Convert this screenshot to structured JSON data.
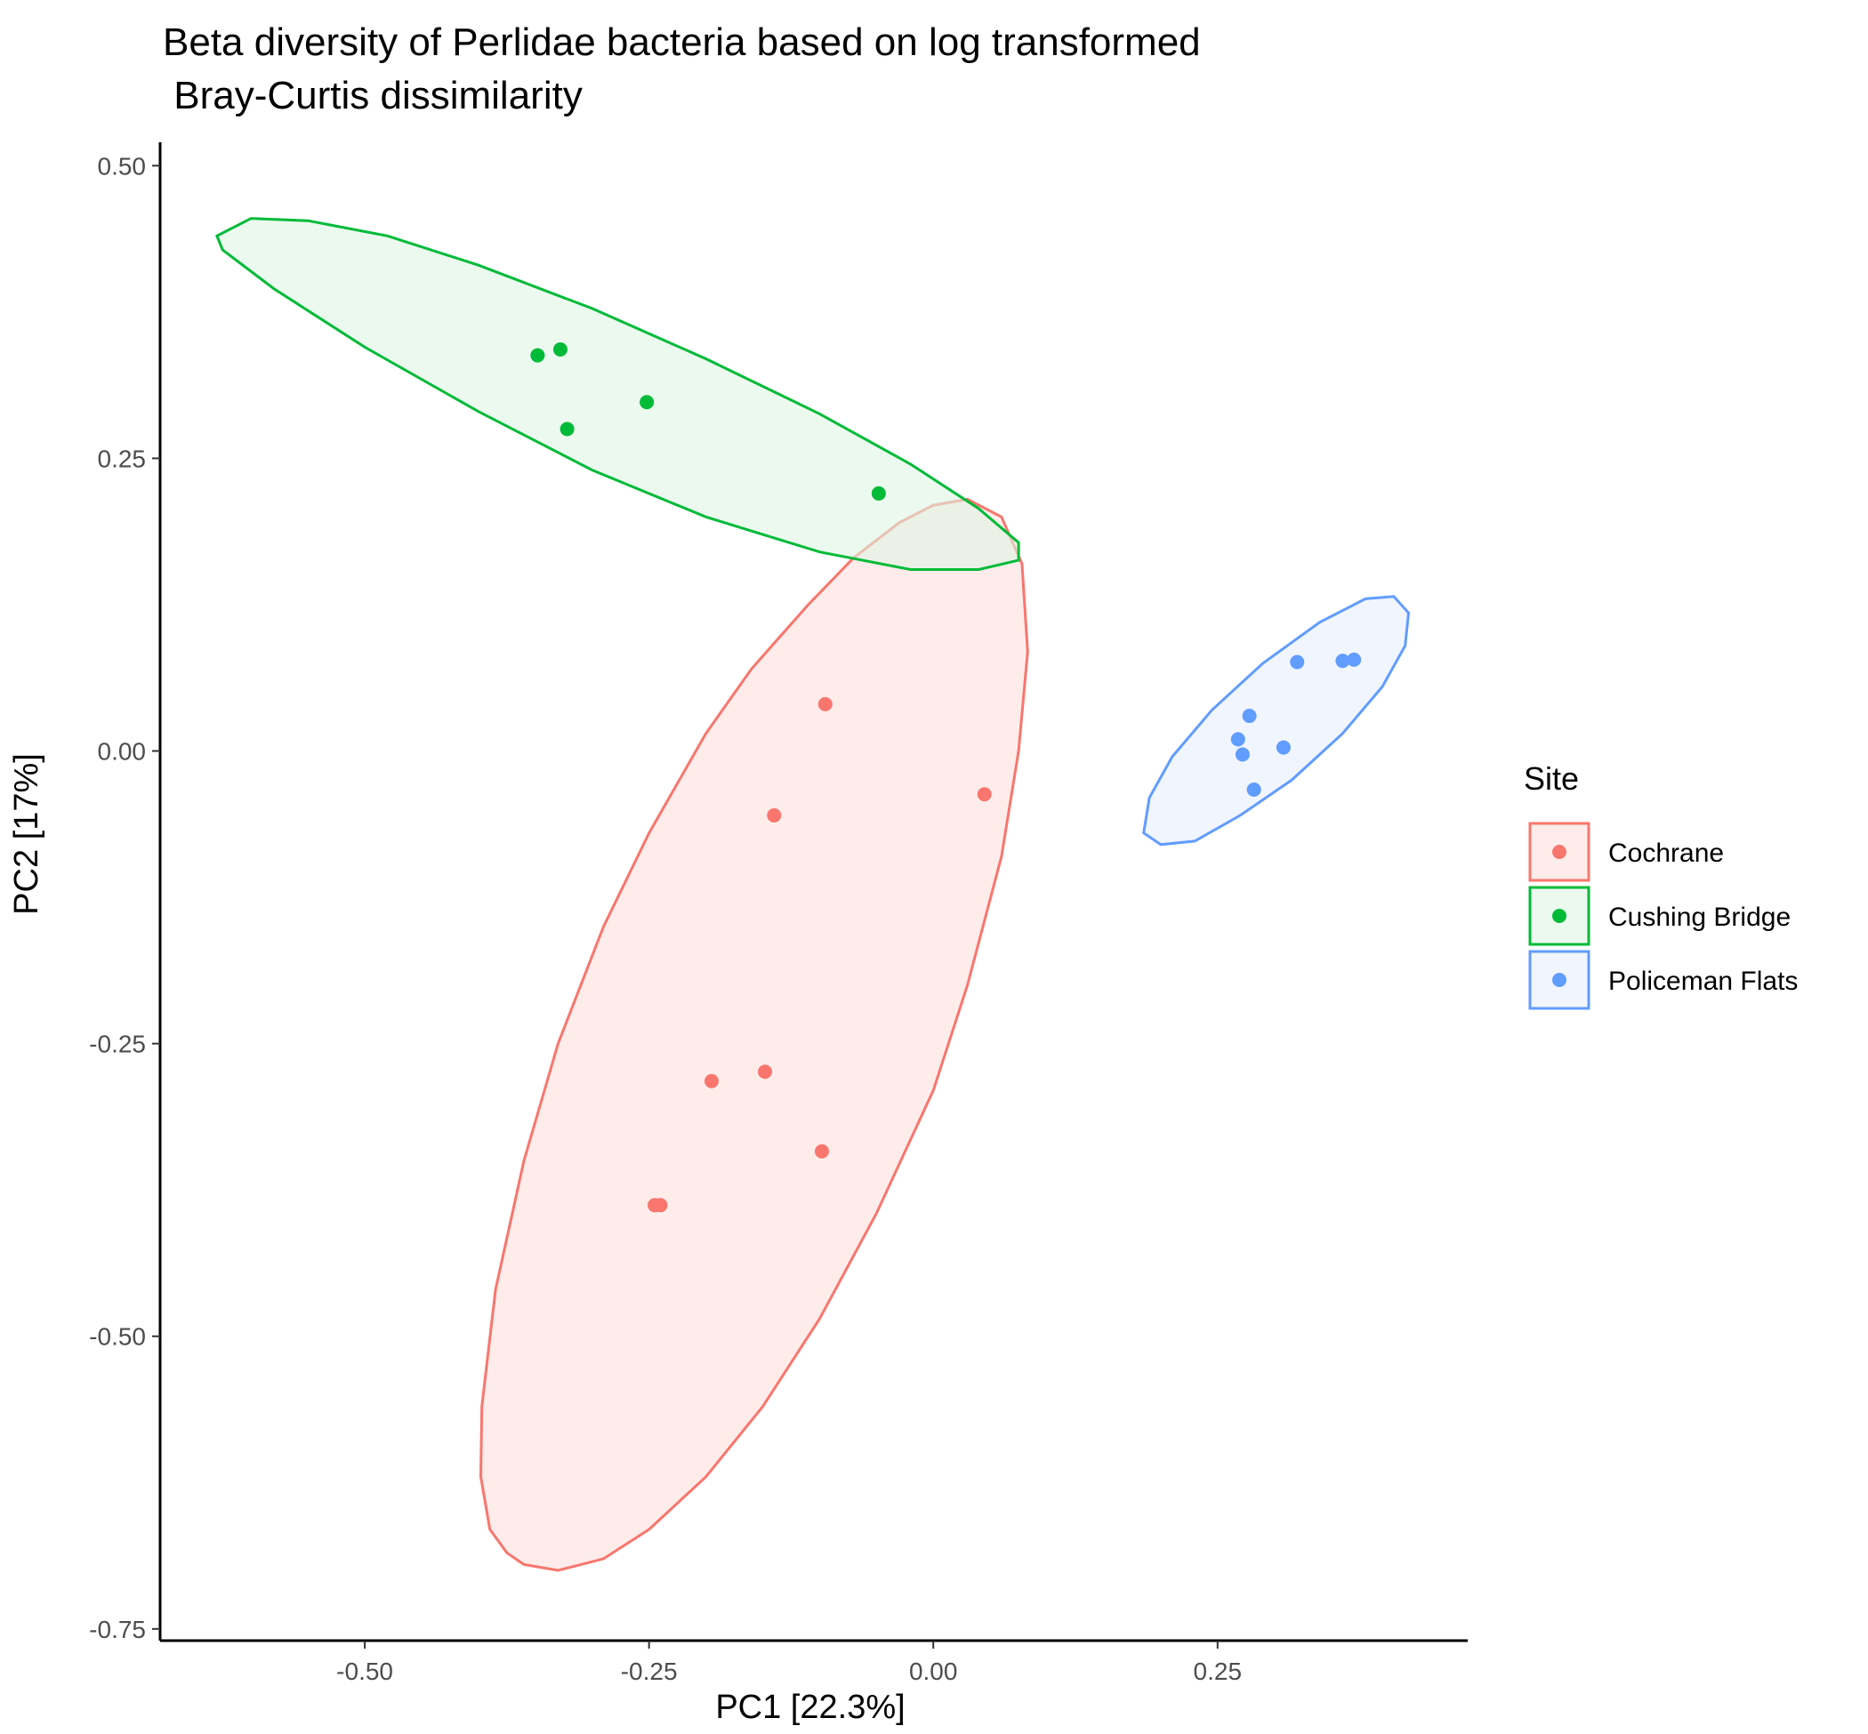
{
  "chart_data": {
    "type": "scatter",
    "title": "Beta diversity of Perlidae bacteria based on log transformed",
    "subtitle": " Bray-Curtis dissimilarity",
    "xlabel": "PC1 [22.3%]",
    "ylabel": "PC2 [17%]",
    "xlim": [
      -0.68,
      0.47
    ],
    "ylim": [
      -0.76,
      0.52
    ],
    "x_ticks": [
      -0.5,
      -0.25,
      0.0,
      0.25
    ],
    "x_tick_labels": [
      "-0.50",
      "-0.25",
      "0.00",
      "0.25"
    ],
    "y_ticks": [
      -0.75,
      -0.5,
      -0.25,
      0.0,
      0.25,
      0.5
    ],
    "y_tick_labels": [
      "-0.75",
      "-0.50",
      "-0.25",
      "0.00",
      "0.25",
      "0.50"
    ],
    "grid": false,
    "legend_title": "Site",
    "legend_position": "right",
    "series": [
      {
        "name": "Cochrane",
        "color": "#F8766D",
        "fill": "#FDE0DE",
        "points": [
          {
            "x": -0.095,
            "y": 0.04
          },
          {
            "x": -0.14,
            "y": -0.055
          },
          {
            "x": 0.045,
            "y": -0.037
          },
          {
            "x": -0.195,
            "y": -0.282
          },
          {
            "x": -0.148,
            "y": -0.274
          },
          {
            "x": -0.098,
            "y": -0.342
          },
          {
            "x": -0.245,
            "y": -0.388
          },
          {
            "x": -0.24,
            "y": -0.388
          }
        ],
        "ellipse": [
          {
            "x": -0.36,
            "y": -0.695
          },
          {
            "x": -0.33,
            "y": -0.7
          },
          {
            "x": -0.29,
            "y": -0.69
          },
          {
            "x": -0.25,
            "y": -0.665
          },
          {
            "x": -0.2,
            "y": -0.62
          },
          {
            "x": -0.15,
            "y": -0.56
          },
          {
            "x": -0.1,
            "y": -0.485
          },
          {
            "x": -0.05,
            "y": -0.395
          },
          {
            "x": 0.0,
            "y": -0.29
          },
          {
            "x": 0.03,
            "y": -0.2
          },
          {
            "x": 0.06,
            "y": -0.09
          },
          {
            "x": 0.075,
            "y": 0.0
          },
          {
            "x": 0.083,
            "y": 0.085
          },
          {
            "x": 0.078,
            "y": 0.16
          },
          {
            "x": 0.06,
            "y": 0.2
          },
          {
            "x": 0.03,
            "y": 0.215
          },
          {
            "x": 0.0,
            "y": 0.21
          },
          {
            "x": -0.03,
            "y": 0.195
          },
          {
            "x": -0.07,
            "y": 0.165
          },
          {
            "x": -0.11,
            "y": 0.125
          },
          {
            "x": -0.16,
            "y": 0.07
          },
          {
            "x": -0.2,
            "y": 0.015
          },
          {
            "x": -0.25,
            "y": -0.07
          },
          {
            "x": -0.29,
            "y": -0.15
          },
          {
            "x": -0.33,
            "y": -0.25
          },
          {
            "x": -0.36,
            "y": -0.35
          },
          {
            "x": -0.385,
            "y": -0.46
          },
          {
            "x": -0.397,
            "y": -0.56
          },
          {
            "x": -0.398,
            "y": -0.62
          },
          {
            "x": -0.39,
            "y": -0.665
          },
          {
            "x": -0.375,
            "y": -0.685
          }
        ]
      },
      {
        "name": "Cushing Bridge",
        "color": "#00BA38",
        "fill": "#DDF5E3",
        "points": [
          {
            "x": -0.348,
            "y": 0.338
          },
          {
            "x": -0.328,
            "y": 0.343
          },
          {
            "x": -0.322,
            "y": 0.275
          },
          {
            "x": -0.252,
            "y": 0.298
          },
          {
            "x": -0.048,
            "y": 0.22
          }
        ],
        "ellipse": [
          {
            "x": -0.63,
            "y": 0.44
          },
          {
            "x": -0.6,
            "y": 0.455
          },
          {
            "x": -0.55,
            "y": 0.453
          },
          {
            "x": -0.48,
            "y": 0.44
          },
          {
            "x": -0.4,
            "y": 0.415
          },
          {
            "x": -0.3,
            "y": 0.378
          },
          {
            "x": -0.2,
            "y": 0.335
          },
          {
            "x": -0.1,
            "y": 0.288
          },
          {
            "x": -0.02,
            "y": 0.245
          },
          {
            "x": 0.04,
            "y": 0.207
          },
          {
            "x": 0.075,
            "y": 0.178
          },
          {
            "x": 0.075,
            "y": 0.163
          },
          {
            "x": 0.04,
            "y": 0.155
          },
          {
            "x": -0.02,
            "y": 0.155
          },
          {
            "x": -0.1,
            "y": 0.17
          },
          {
            "x": -0.2,
            "y": 0.2
          },
          {
            "x": -0.3,
            "y": 0.24
          },
          {
            "x": -0.4,
            "y": 0.29
          },
          {
            "x": -0.5,
            "y": 0.345
          },
          {
            "x": -0.58,
            "y": 0.395
          },
          {
            "x": -0.625,
            "y": 0.428
          }
        ]
      },
      {
        "name": "Policeman Flats",
        "color": "#619CFF",
        "fill": "#E6EFFD",
        "points": [
          {
            "x": 0.32,
            "y": 0.076
          },
          {
            "x": 0.36,
            "y": 0.077
          },
          {
            "x": 0.37,
            "y": 0.078
          },
          {
            "x": 0.278,
            "y": 0.03
          },
          {
            "x": 0.268,
            "y": 0.01
          },
          {
            "x": 0.308,
            "y": 0.003
          },
          {
            "x": 0.272,
            "y": -0.003
          },
          {
            "x": 0.282,
            "y": -0.033
          }
        ],
        "ellipse": [
          {
            "x": 0.2,
            "y": -0.08
          },
          {
            "x": 0.185,
            "y": -0.07
          },
          {
            "x": 0.19,
            "y": -0.04
          },
          {
            "x": 0.21,
            "y": -0.005
          },
          {
            "x": 0.245,
            "y": 0.035
          },
          {
            "x": 0.29,
            "y": 0.075
          },
          {
            "x": 0.34,
            "y": 0.11
          },
          {
            "x": 0.38,
            "y": 0.13
          },
          {
            "x": 0.405,
            "y": 0.132
          },
          {
            "x": 0.418,
            "y": 0.118
          },
          {
            "x": 0.415,
            "y": 0.09
          },
          {
            "x": 0.395,
            "y": 0.055
          },
          {
            "x": 0.36,
            "y": 0.015
          },
          {
            "x": 0.315,
            "y": -0.025
          },
          {
            "x": 0.27,
            "y": -0.055
          },
          {
            "x": 0.23,
            "y": -0.077
          }
        ]
      }
    ]
  }
}
